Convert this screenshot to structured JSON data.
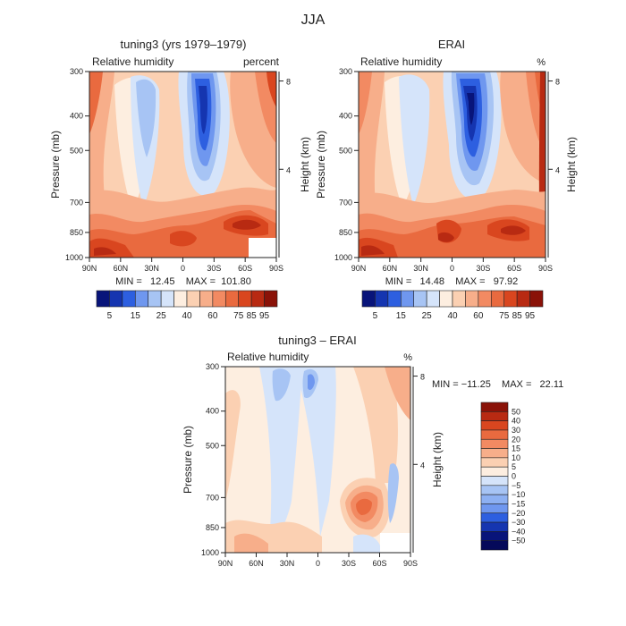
{
  "main_title": "JJA",
  "chart_data": [
    {
      "type": "heatmap",
      "title": "tuning3 (yrs 1979–1979)",
      "subtitle_left": "Relative humidity",
      "subtitle_right": "percent",
      "ylabel": "Pressure (mb)",
      "ylabel_right": "Height (km)",
      "x_ticks": [
        "90N",
        "60N",
        "30N",
        "0",
        "30S",
        "60S",
        "90S"
      ],
      "y_ticks": [
        "300",
        "400",
        "500",
        "700",
        "850",
        "1000"
      ],
      "y_right_ticks": [
        "8",
        "4"
      ],
      "ylim": [
        1000,
        300
      ],
      "grid": false,
      "min": 12.45,
      "max": 101.8,
      "stats_text": "MIN =   12.45    MAX =  101.80",
      "colorbar_labels": [
        "5",
        "15",
        "25",
        "40",
        "60",
        "75",
        "85",
        "95"
      ],
      "colorbar_orientation": "horizontal"
    },
    {
      "type": "heatmap",
      "title": "ERAI",
      "subtitle_left": "Relative humidity",
      "subtitle_right": "%",
      "ylabel": "Pressure (mb)",
      "ylabel_right": "Height (km)",
      "x_ticks": [
        "90N",
        "60N",
        "30N",
        "0",
        "30S",
        "60S",
        "90S"
      ],
      "y_ticks": [
        "300",
        "400",
        "500",
        "700",
        "850",
        "1000"
      ],
      "y_right_ticks": [
        "8",
        "4"
      ],
      "ylim": [
        1000,
        300
      ],
      "grid": false,
      "min": 14.48,
      "max": 97.92,
      "stats_text": "MIN =   14.48    MAX =   97.92",
      "colorbar_labels": [
        "5",
        "15",
        "25",
        "40",
        "60",
        "75",
        "85",
        "95"
      ],
      "colorbar_orientation": "horizontal"
    },
    {
      "type": "heatmap",
      "title": "tuning3 – ERAI",
      "subtitle_left": "Relative humidity",
      "subtitle_right": "%",
      "ylabel": "Pressure (mb)",
      "ylabel_right": "Height (km)",
      "x_ticks": [
        "90N",
        "60N",
        "30N",
        "0",
        "30S",
        "60S",
        "90S"
      ],
      "y_ticks": [
        "300",
        "400",
        "500",
        "700",
        "850",
        "1000"
      ],
      "y_right_ticks": [
        "8",
        "4"
      ],
      "ylim": [
        1000,
        300
      ],
      "grid": false,
      "min": -11.25,
      "max": 22.11,
      "stats_text": "MIN = −11.25    MAX =   22.11",
      "colorbar_labels": [
        "50",
        "40",
        "30",
        "20",
        "15",
        "10",
        "5",
        "0",
        "−5",
        "−10",
        "−15",
        "−20",
        "−30",
        "−40",
        "−50"
      ],
      "colorbar_orientation": "vertical"
    }
  ],
  "colors": {
    "rh_scale": [
      "#08147a",
      "#1535b0",
      "#2d5fe0",
      "#6f97ef",
      "#a7c4f4",
      "#d5e4fa",
      "#fdeee0",
      "#fbd0b2",
      "#f7ae8a",
      "#f28a62",
      "#e96a3f",
      "#d9461f",
      "#b82a12",
      "#8a1208"
    ],
    "diff_scale": [
      "#8a1208",
      "#b82a12",
      "#d9461f",
      "#e96a3f",
      "#f28a62",
      "#f7ae8a",
      "#fbd0b2",
      "#fdeee0",
      "#d5e4fa",
      "#a7c4f4",
      "#8db0f2",
      "#6f97ef",
      "#2d5fe0",
      "#1535b0",
      "#08147a",
      "#05095a"
    ]
  }
}
